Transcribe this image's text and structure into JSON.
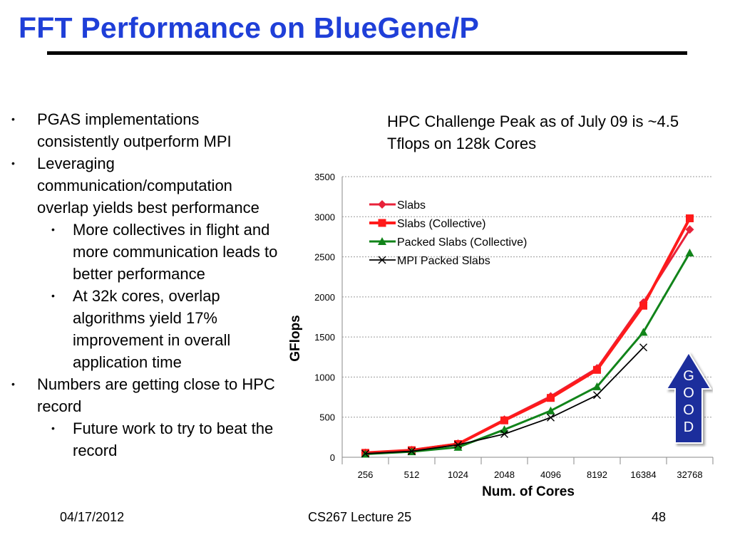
{
  "slide": {
    "title": "FFT Performance on BlueGene/P",
    "chart_caption": "HPC Challenge Peak as of July 09 is ~4.5 Tflops on 128k Cores",
    "bullets": [
      {
        "level": 1,
        "text": "PGAS implementations consistently outperform MPI"
      },
      {
        "level": 1,
        "text": "Leveraging communication/computation overlap yields best performance"
      },
      {
        "level": 2,
        "text": "More collectives in flight and more communication leads to better performance"
      },
      {
        "level": 2,
        "text": "At 32k cores, overlap algorithms yield 17% improvement in overall application time"
      },
      {
        "level": 1,
        "text": "Numbers are getting close to HPC record"
      },
      {
        "level": 2,
        "text": "Future work to try to beat the record"
      }
    ],
    "callout": {
      "letters": [
        "G",
        "O",
        "O",
        "D"
      ],
      "color": "#1e2f9c"
    },
    "footer": {
      "date": "04/17/2012",
      "course": "CS267 Lecture 25",
      "page": "48"
    },
    "colors": {
      "title": "#1f3fd8"
    }
  },
  "chart_data": {
    "type": "line",
    "title": "",
    "xlabel": "Num. of Cores",
    "ylabel": "GFlops",
    "categories": [
      "256",
      "512",
      "1024",
      "2048",
      "4096",
      "8192",
      "16384",
      "32768"
    ],
    "ylim": [
      0,
      3500
    ],
    "yticks": [
      "0",
      "500",
      "1000",
      "1500",
      "2000",
      "2500",
      "3000",
      "3500"
    ],
    "grid": true,
    "legend_position": "top-left",
    "series": [
      {
        "name": "Slabs",
        "color": "#e8223a",
        "marker": "diamond",
        "values": [
          55,
          90,
          170,
          470,
          760,
          1110,
          1930,
          2840
        ]
      },
      {
        "name": "Slabs (Collective)",
        "color": "#ff1a1a",
        "marker": "square",
        "values": [
          55,
          88,
          165,
          460,
          740,
          1090,
          1890,
          2980
        ]
      },
      {
        "name": "Packed Slabs (Collective)",
        "color": "#11841a",
        "marker": "triangle",
        "values": [
          40,
          70,
          125,
          345,
          580,
          880,
          1560,
          2550
        ]
      },
      {
        "name": "MPI Packed Slabs",
        "color": "#000000",
        "marker": "x",
        "values": [
          45,
          75,
          155,
          290,
          495,
          775,
          1370,
          null
        ]
      }
    ]
  }
}
